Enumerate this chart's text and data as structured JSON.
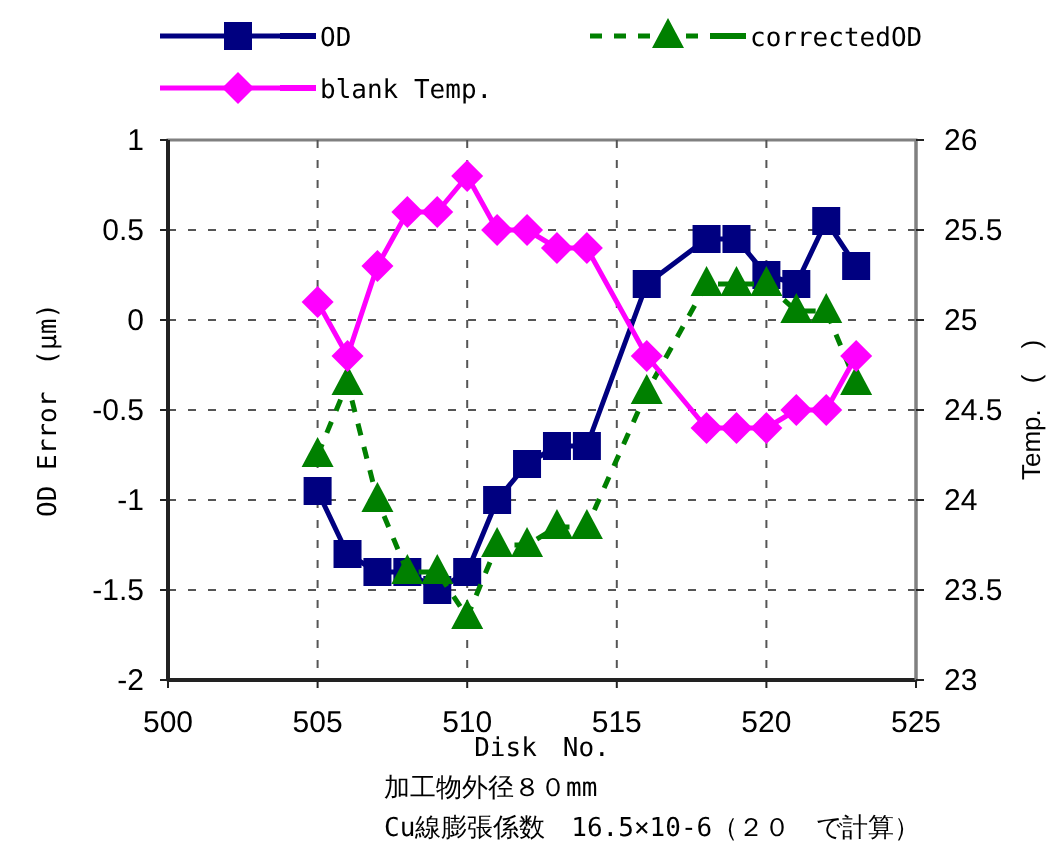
{
  "chart_data": {
    "type": "line",
    "xlabel": "Disk　No.",
    "ylabel": "OD Error　(μm)",
    "y2label": "Temp.　(　)",
    "x": [
      505,
      506,
      507,
      508,
      509,
      510,
      511,
      512,
      513,
      514,
      515,
      516,
      517,
      518,
      519,
      520,
      521,
      522,
      523
    ],
    "series": [
      {
        "name": "OD",
        "color": "#000080",
        "marker": "square",
        "line_style": "solid",
        "values": [
          -0.95,
          -1.3,
          -1.4,
          -1.4,
          -1.5,
          -1.4,
          -1.0,
          -0.8,
          -0.7,
          -0.7,
          null,
          0.2,
          null,
          0.45,
          0.45,
          0.25,
          0.2,
          0.55,
          0.3
        ]
      },
      {
        "name": "correctedOD",
        "color": "#008000",
        "marker": "triangle",
        "line_style": "dashed",
        "values": [
          -0.75,
          -0.35,
          -1.0,
          -1.4,
          -1.4,
          -1.65,
          -1.25,
          -1.25,
          -1.15,
          -1.15,
          null,
          -0.4,
          null,
          0.2,
          0.2,
          0.2,
          0.05,
          0.05,
          -0.35
        ]
      },
      {
        "name": "blank Temp.",
        "color": "#ff00ff",
        "marker": "diamond",
        "line_style": "solid",
        "axis": "y2",
        "values": [
          25.1,
          24.8,
          25.3,
          25.6,
          25.6,
          25.8,
          25.5,
          25.5,
          25.4,
          25.4,
          null,
          24.8,
          null,
          24.4,
          24.4,
          24.4,
          24.5,
          24.5,
          24.8
        ]
      }
    ],
    "xlim": [
      500,
      525
    ],
    "xticks": [
      500,
      505,
      510,
      515,
      520,
      525
    ],
    "ylim": [
      -2,
      1
    ],
    "yticks": [
      -2,
      -1.5,
      -1,
      -0.5,
      0,
      0.5,
      1
    ],
    "y2lim": [
      23,
      26
    ],
    "y2ticks": [
      23,
      23.5,
      24,
      24.5,
      25,
      25.5,
      26
    ],
    "grid": true,
    "legend": "top",
    "annotations": [
      "加工物外径８０mm",
      "Cu線膨張係数　16.5×10-6（２０　で計算）"
    ]
  }
}
